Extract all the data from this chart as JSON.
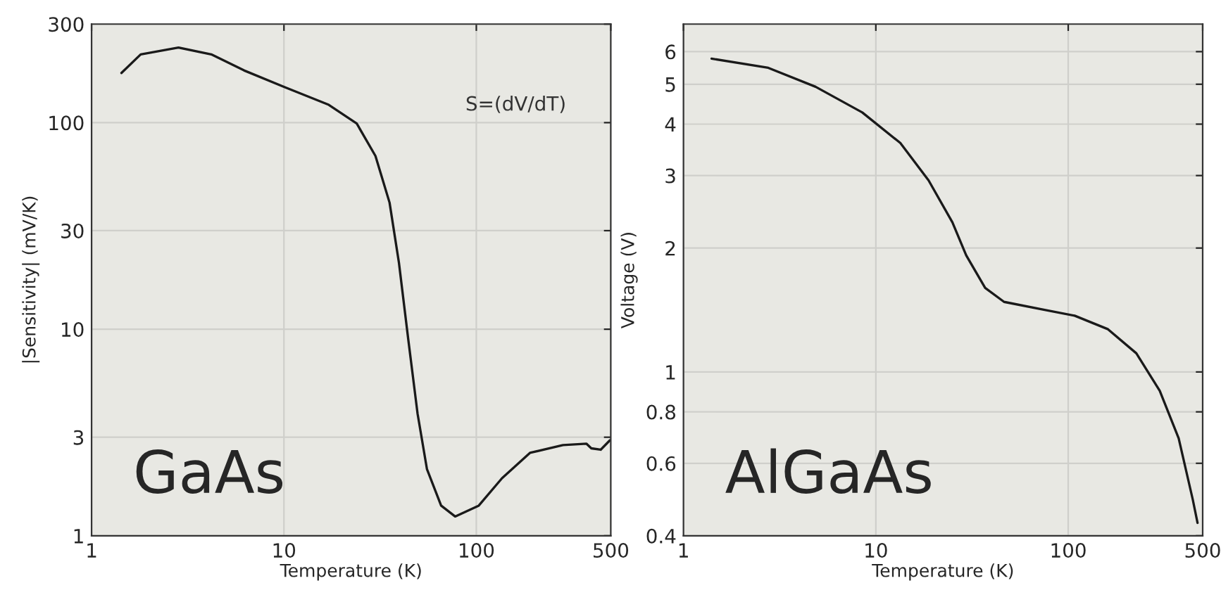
{
  "chart_data": [
    {
      "type": "line",
      "xlabel": "Temperature (K)",
      "ylabel": "|Sensitivity| (mV/K)",
      "log": "xy",
      "grid": true,
      "marker": "none",
      "line_style": "solid",
      "annotations": [
        "S=(dV/dT)",
        "GaAs"
      ],
      "xlim": [
        1,
        500
      ],
      "xticks": [
        1,
        10,
        100,
        500
      ],
      "ylim": [
        1,
        300
      ],
      "yticks": [
        1,
        3,
        10,
        30,
        100,
        300
      ],
      "series": [
        {
          "color": "#1a1a1a",
          "x": [
            1.43,
            1.8,
            2.83,
            4.19,
            6.2,
            10,
            17.1,
            23.9,
            29.9,
            35.4,
            39.6,
            44.3,
            49.5,
            55.4,
            65.6,
            77.6,
            103,
            136,
            190,
            282,
            374,
            396,
            443,
            495
          ],
          "values": [
            174,
            214,
            231,
            214,
            179,
            149,
            122,
            99,
            69,
            41,
            21,
            8.9,
            3.9,
            2.1,
            1.4,
            1.24,
            1.4,
            1.9,
            2.52,
            2.75,
            2.79,
            2.65,
            2.61,
            2.9
          ]
        }
      ]
    },
    {
      "type": "line",
      "xlabel": "Temperature (K)",
      "ylabel": "Voltage (V)",
      "log": "xy",
      "grid": true,
      "marker": "none",
      "line_style": "solid",
      "annotations": [
        "AlGaAs"
      ],
      "xlim": [
        1,
        500
      ],
      "xticks": [
        1,
        10,
        100,
        500
      ],
      "ylim": [
        0.4,
        7
      ],
      "yticks": [
        0.4,
        0.6,
        0.8,
        1,
        2,
        3,
        4,
        5,
        6
      ],
      "series": [
        {
          "color": "#1a1a1a",
          "x": [
            1.4,
            2.76,
            4.86,
            8.5,
            13.4,
            18.8,
            25,
            29.5,
            37,
            46.4,
            73,
            108,
            161,
            226,
            299,
            375,
            444,
            470
          ],
          "values": [
            5.77,
            5.48,
            4.93,
            4.27,
            3.6,
            2.92,
            2.31,
            1.92,
            1.6,
            1.48,
            1.42,
            1.37,
            1.27,
            1.11,
            0.9,
            0.69,
            0.49,
            0.43
          ]
        }
      ]
    }
  ]
}
